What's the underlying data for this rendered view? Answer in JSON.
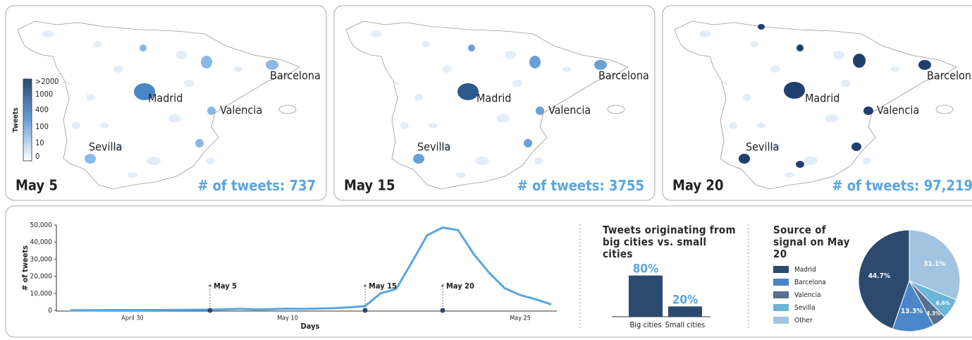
{
  "maps": [
    {
      "date": "May 5",
      "count": "737"
    },
    {
      "date": "May 15",
      "count": "3755"
    },
    {
      "date": "May 20",
      "count": "97,219"
    }
  ],
  "count_label": "# of tweets:",
  "cities": [
    "Madrid",
    "Barcelona",
    "Valencia",
    "Sevilla"
  ],
  "map_legend": {
    "title": "Tweets",
    "ticks": [
      ">2000",
      "1000",
      "400",
      "100",
      "10",
      "0"
    ]
  },
  "chart_data": [
    {
      "type": "line",
      "y_label": "# of tweets",
      "x_label": "Days",
      "color": "#5aa5e0",
      "categories": [
        null,
        null,
        null,
        null,
        "April 30",
        null,
        null,
        null,
        null,
        null,
        null,
        null,
        null,
        null,
        "May 10",
        null,
        null,
        null,
        null,
        null,
        null,
        null,
        null,
        null,
        null,
        null,
        null,
        null,
        null,
        "May 25",
        null,
        null
      ],
      "values": [
        100,
        120,
        150,
        200,
        180,
        200,
        250,
        300,
        350,
        400,
        600,
        900,
        500,
        700,
        1000,
        900,
        1100,
        1300,
        1800,
        2500,
        10000,
        12500,
        28000,
        44000,
        48500,
        47000,
        33000,
        22000,
        13000,
        9000,
        6500,
        3500
      ],
      "ylim": [
        0,
        50000
      ],
      "yticks": [
        0,
        {
          "value": 10000,
          "label": "10,000"
        },
        {
          "value": 20000,
          "label": "20,000"
        },
        {
          "value": 30000,
          "label": "30,000"
        },
        {
          "value": 40000,
          "label": "40,000"
        },
        {
          "value": 50000,
          "label": "50,000"
        }
      ],
      "annotations": [
        "May 5",
        "May 15",
        "May 20"
      ]
    },
    {
      "type": "bar",
      "title": "Tweets originating from big cities vs. small cities",
      "categories": [
        "Big cities",
        "Small cities"
      ],
      "values": [
        80,
        20
      ],
      "value_labels": [
        "80%",
        "20%"
      ],
      "color": "#2c4a6e"
    },
    {
      "type": "pie",
      "title": "Source of signal on May 20",
      "categories": [
        "Madrid",
        "Barcelona",
        "Valencia",
        "Sevilla",
        "Other"
      ],
      "values": [
        44.7,
        13.3,
        4.3,
        6.6,
        31.1
      ],
      "value_labels": [
        "44.7%",
        "13.3%",
        "4.3%",
        "6.6%",
        "31.1%"
      ],
      "colors": [
        "#2c4a6e",
        "#4a86c8",
        "#56708e",
        "#6cb4d8",
        "#a3c4e0"
      ]
    }
  ]
}
